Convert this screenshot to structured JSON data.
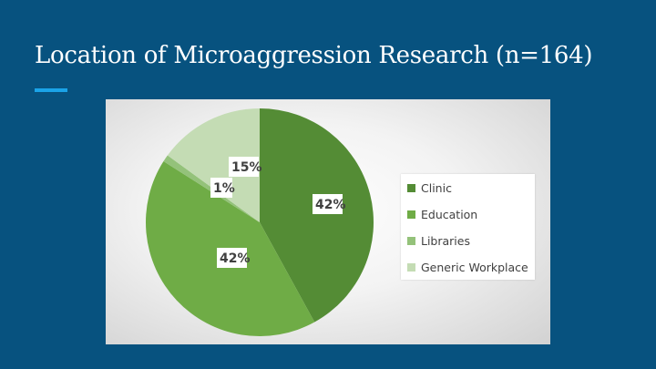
{
  "slide": {
    "title": "Location of Microaggression Research (n=164)"
  },
  "colors": {
    "background": "#07527f",
    "accent": "#1aa3e8"
  },
  "chart_data": {
    "type": "pie",
    "title": "",
    "legend_position": "right",
    "slices": [
      {
        "label": "Clinic",
        "value": 42,
        "display": "42%",
        "color": "#548c35"
      },
      {
        "label": "Education",
        "value": 42,
        "display": "42%",
        "color": "#6fac46"
      },
      {
        "label": "Libraries",
        "value": 1,
        "display": "1%",
        "color": "#94c27a"
      },
      {
        "label": "Generic Workplace",
        "value": 15,
        "display": "15%",
        "color": "#c4dcb4"
      }
    ]
  }
}
